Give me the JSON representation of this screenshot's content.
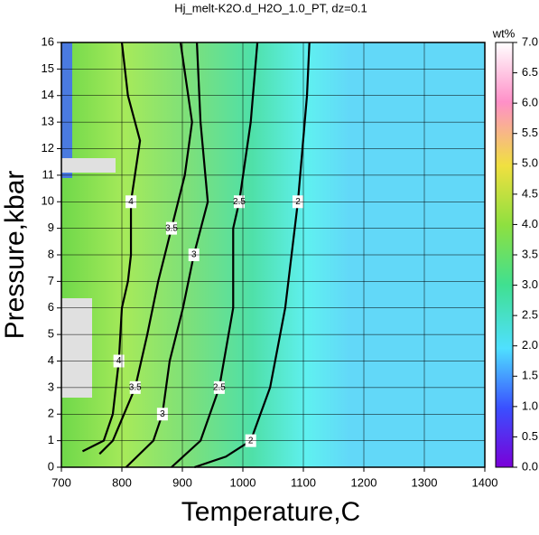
{
  "chart_data": {
    "type": "contour",
    "title": "Hj_melt-K2O.d_H2O_1.0_PT, dz=0.1",
    "x_label": "Temperature,C",
    "y_label": "Pressure,kbar",
    "colorbar_label": "wt%",
    "xlim": [
      700,
      1400
    ],
    "xticks": [
      700,
      800,
      900,
      1000,
      1100,
      1200,
      1300,
      1400
    ],
    "ylim": [
      0,
      16
    ],
    "yticks": [
      0,
      1,
      2,
      3,
      4,
      5,
      6,
      7,
      8,
      9,
      10,
      11,
      12,
      13,
      14,
      15,
      16
    ],
    "clim": [
      0,
      7
    ],
    "cticks": [
      {
        "value": 0,
        "label": "0.0"
      },
      {
        "value": 0.5,
        "label": "0.5"
      },
      {
        "value": 1,
        "label": "1.0"
      },
      {
        "value": 1.5,
        "label": "1.5"
      },
      {
        "value": 2,
        "label": "2.0"
      },
      {
        "value": 2.5,
        "label": "2.5"
      },
      {
        "value": 3,
        "label": "3.0"
      },
      {
        "value": 3.5,
        "label": "3.5"
      },
      {
        "value": 4,
        "label": "4.0"
      },
      {
        "value": 4.5,
        "label": "4.5"
      },
      {
        "value": 5,
        "label": "5.0"
      },
      {
        "value": 5.5,
        "label": "5.5"
      },
      {
        "value": 6,
        "label": "6.0"
      },
      {
        "value": 6.5,
        "label": "6.5"
      },
      {
        "value": 7,
        "label": "7.0"
      }
    ],
    "grid": true,
    "series": [
      {
        "name": "2",
        "color": "#000000",
        "x": [
          1110,
          1106,
          1091,
          1070,
          1045,
          1013,
          972,
          920
        ],
        "y": [
          16,
          14,
          10,
          6,
          3,
          1,
          0.4,
          0
        ]
      },
      {
        "name": "2.5",
        "color": "#000000",
        "x": [
          1024,
          1013,
          994,
          984,
          984,
          961,
          930,
          882
        ],
        "y": [
          16,
          13,
          10,
          9,
          6,
          3,
          1,
          0
        ]
      },
      {
        "name": "3",
        "color": "#000000",
        "x": [
          924,
          930,
          942,
          919,
          901,
          879,
          867,
          852,
          807
        ],
        "y": [
          16,
          13,
          10,
          8,
          6,
          4,
          2,
          1,
          0
        ]
      },
      {
        "name": "3.5",
        "color": "#000000",
        "x": [
          897,
          916,
          904,
          882,
          860,
          842,
          822,
          785,
          763
        ],
        "y": [
          16,
          13,
          11,
          9,
          7,
          5,
          3,
          1,
          0.5
        ]
      },
      {
        "name": "4",
        "color": "#000000",
        "x": [
          800,
          810,
          830,
          815,
          815,
          810,
          800,
          795,
          785,
          770,
          735
        ],
        "y": [
          16,
          14,
          12.3,
          10,
          8,
          7,
          6,
          4,
          2,
          1,
          0.6
        ]
      }
    ]
  }
}
